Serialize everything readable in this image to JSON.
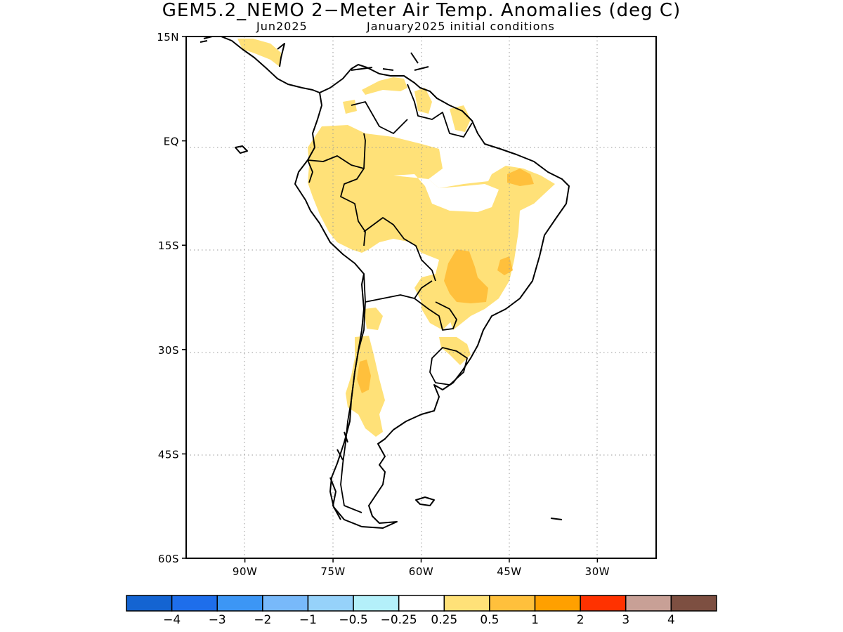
{
  "title": "GEM5.2_NEMO 2−Meter Air Temp. Anomalies (deg C)",
  "subtitle_left": "Jun2025",
  "subtitle_right": "January2025 initial conditions",
  "y_axis": {
    "ticks": [
      {
        "label": "15N",
        "lat": 15
      },
      {
        "label": "EQ",
        "lat": 0
      },
      {
        "label": "15S",
        "lat": -15
      },
      {
        "label": "30S",
        "lat": -30
      },
      {
        "label": "45S",
        "lat": -45
      },
      {
        "label": "60S",
        "lat": -60
      }
    ]
  },
  "x_axis": {
    "ticks": [
      {
        "label": "90W",
        "lon": -90
      },
      {
        "label": "75W",
        "lon": -75
      },
      {
        "label": "60W",
        "lon": -60
      },
      {
        "label": "45W",
        "lon": -45
      },
      {
        "label": "30W",
        "lon": -30
      }
    ]
  },
  "colorbar": {
    "colors": [
      "#1464d2",
      "#1e6eeb",
      "#3c96f5",
      "#78b9fa",
      "#96d2fa",
      "#b4f0fa",
      "#ffffff",
      "#ffe178",
      "#ffc03c",
      "#ffa000",
      "#ff3200",
      "#c8a096",
      "#7d4f41"
    ],
    "labels": [
      "−4",
      "−3",
      "−2",
      "−1",
      "−0.5",
      "−0.25",
      "0.25",
      "0.5",
      "1",
      "2",
      "3",
      "4"
    ]
  },
  "map_data": {
    "region": "South America",
    "extent": {
      "lon_min": -100,
      "lon_max": -20,
      "lat_min": -60,
      "lat_max": 15
    },
    "grid": "dotted",
    "anomaly_colors": {
      "weak": "#ffe178",
      "moderate": "#ffc03c",
      "strong": "#ffa000"
    }
  }
}
